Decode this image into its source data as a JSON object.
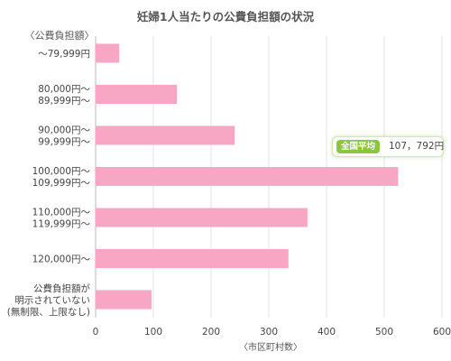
{
  "title": "妊婦1人当たりの公費負担額の状況",
  "colors": {
    "bar": "#f7a6c4",
    "grid": "#e3e3e3",
    "text": "#444444",
    "badge_green": "#8cc63f"
  },
  "average_badge": {
    "label": "全国平均",
    "value": "107，792円"
  },
  "chart_data": {
    "type": "bar",
    "orientation": "horizontal",
    "title": "妊婦1人当たりの公費負担額の状況",
    "ylabel": "〈公費負担額〉",
    "xlabel": "〈市区町村数〉",
    "categories": [
      "～79,999円",
      "80,000円～\n89,999円～",
      "90,000円～\n99,999円～",
      "100,000円～\n109,999円～",
      "110,000円～\n119,999円～",
      "120,000円～",
      "公費負担額が\n明示されていない\n(無制限、上限なし)"
    ],
    "values": [
      41,
      141,
      241,
      524,
      367,
      334,
      97
    ],
    "xlim": [
      0,
      600
    ],
    "xticks": [
      0,
      100,
      200,
      300,
      400,
      500,
      600
    ],
    "grid": true,
    "annotations": [
      "全国平均",
      "107，792円"
    ]
  }
}
